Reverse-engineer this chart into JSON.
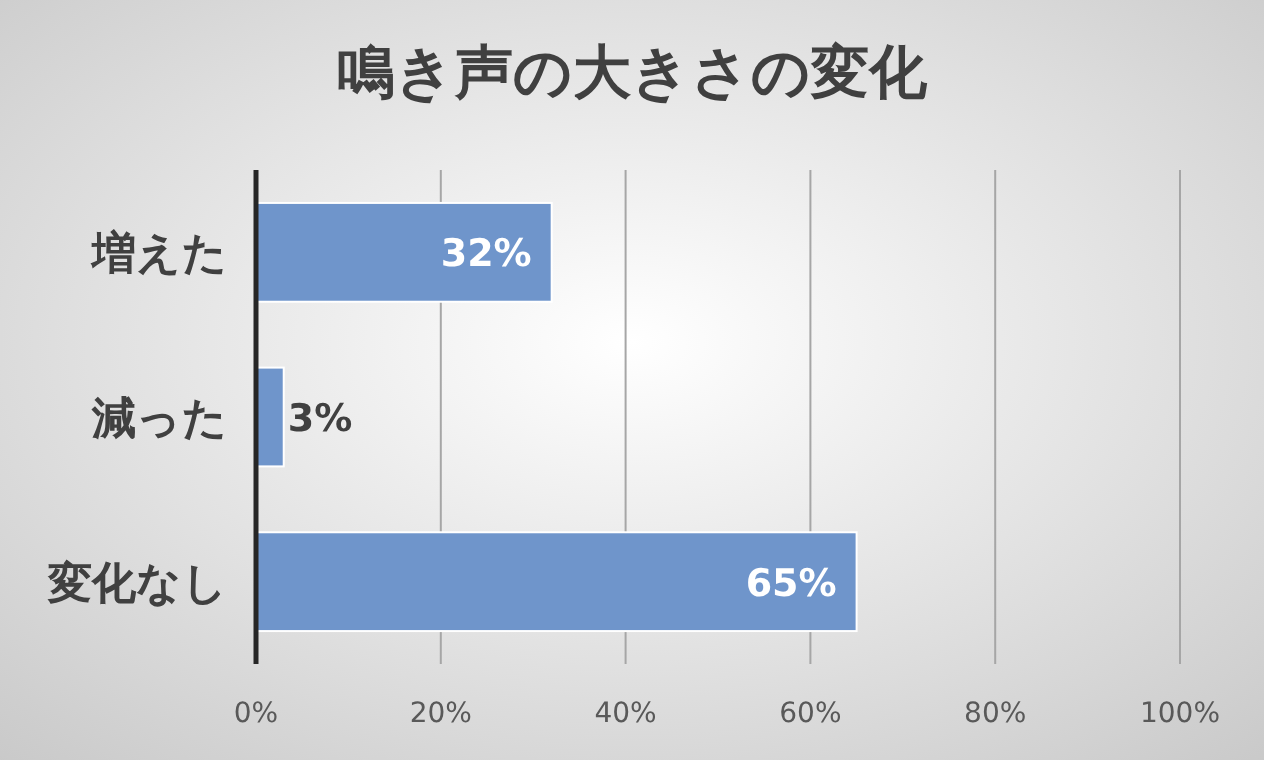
{
  "chart_data": {
    "type": "bar",
    "orientation": "horizontal",
    "title": "鳴き声の大きさの変化",
    "categories": [
      "増えた",
      "減った",
      "変化なし"
    ],
    "values": [
      32,
      3,
      65
    ],
    "value_labels": [
      "32%",
      "3%",
      "65%"
    ],
    "color": "#6f95cb",
    "xlim": [
      0,
      100
    ],
    "xticks": [
      {
        "value": 0,
        "label": "0%"
      },
      {
        "value": 20,
        "label": "20%"
      },
      {
        "value": 40,
        "label": "40%"
      },
      {
        "value": 60,
        "label": "60%"
      },
      {
        "value": 80,
        "label": "80%"
      },
      {
        "value": 100,
        "label": "100%"
      }
    ],
    "grid": "x"
  }
}
